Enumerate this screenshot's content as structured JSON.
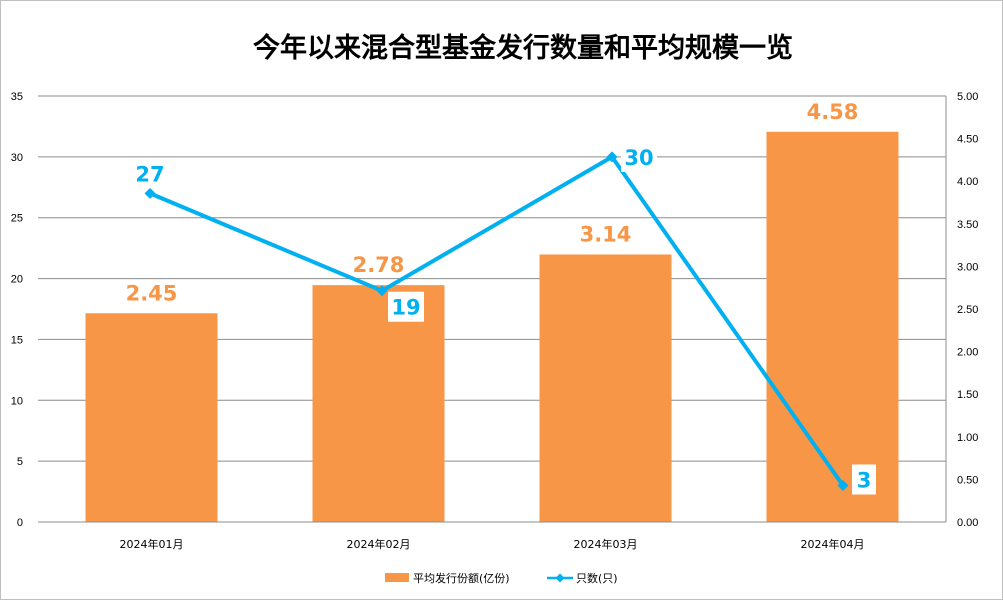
{
  "chart_data": {
    "type": "bar",
    "title": "今年以来混合型基金发行数量和平均规模一览",
    "categories": [
      "2024年01月",
      "2024年02月",
      "2024年03月",
      "2024年04月"
    ],
    "series": [
      {
        "name": "平均发行份额(亿份)",
        "type": "bar",
        "axis": "right",
        "color": "#f79646",
        "values": [
          2.45,
          2.78,
          3.14,
          4.58
        ],
        "labels": [
          "2.45",
          "2.78",
          "3.14",
          "4.58"
        ]
      },
      {
        "name": "只数(只)",
        "type": "line",
        "axis": "left",
        "color": "#00b0f0",
        "marker": "diamond",
        "values": [
          27,
          19,
          30,
          3
        ],
        "labels": [
          "27",
          "19",
          "30",
          "3"
        ]
      }
    ],
    "y_left": {
      "min": 0,
      "max": 35,
      "step": 5,
      "ticks": [
        "0",
        "5",
        "10",
        "15",
        "20",
        "25",
        "30",
        "35"
      ]
    },
    "y_right": {
      "min": 0,
      "max": 5,
      "step": 0.5,
      "ticks": [
        "0.00",
        "0.50",
        "1.00",
        "1.50",
        "2.00",
        "2.50",
        "3.00",
        "3.50",
        "4.00",
        "4.50",
        "5.00"
      ]
    },
    "grid": true,
    "legend_position": "bottom"
  }
}
